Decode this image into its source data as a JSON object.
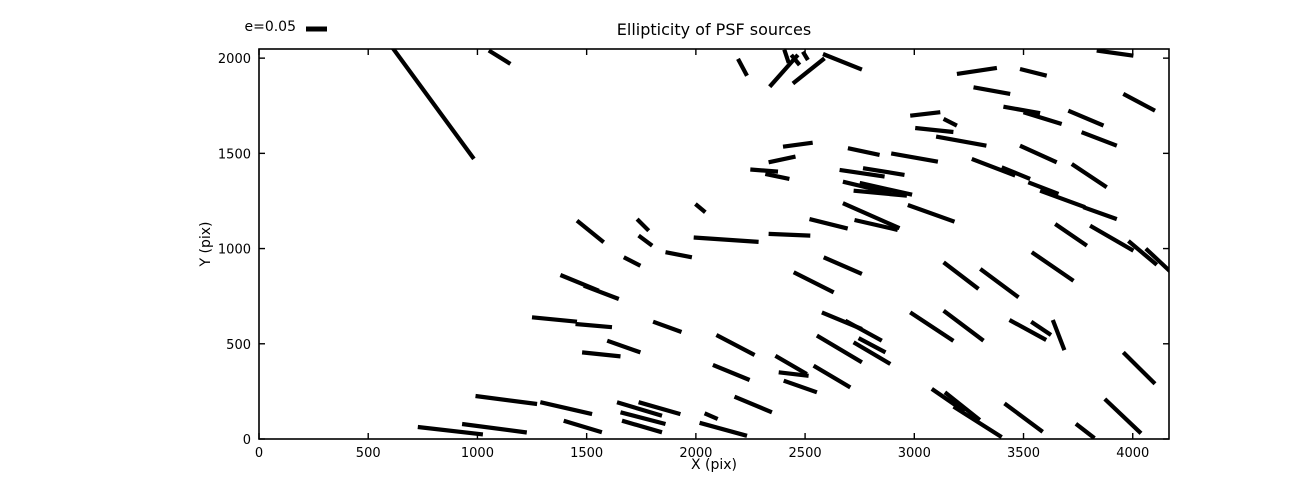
{
  "chart_data": {
    "type": "scatter",
    "subtype": "whisker-segments",
    "title": "Ellipticity of PSF sources",
    "xlabel": "X (pix)",
    "ylabel": "Y (pix)",
    "xlim": [
      0,
      4166
    ],
    "ylim": [
      0,
      2048
    ],
    "xticks": [
      0,
      500,
      1000,
      1500,
      2000,
      2500,
      3000,
      3500,
      4000
    ],
    "yticks": [
      0,
      500,
      1000,
      1500,
      2000
    ],
    "grid": false,
    "legend": {
      "label": "e=0.05",
      "position": "upper-left-outside",
      "marker": "thick-line"
    },
    "colors": {
      "segment": "#000000",
      "frame": "#000000",
      "background": "#ffffff"
    },
    "segments_format": [
      "x1",
      "y1",
      "x2",
      "y2"
    ],
    "segments": [
      [
        610,
        2057,
        984,
        1471
      ],
      [
        1052,
        2040,
        1151,
        1970
      ],
      [
        2193,
        1996,
        2234,
        1908
      ],
      [
        2405,
        2045,
        2425,
        1975
      ],
      [
        2490,
        2034,
        2513,
        1990
      ],
      [
        2437,
        2017,
        2475,
        1964
      ],
      [
        2338,
        1850,
        2467,
        2017
      ],
      [
        2444,
        1867,
        2589,
        1999
      ],
      [
        2582,
        2022,
        2760,
        1940
      ],
      [
        3835,
        2040,
        4003,
        2013
      ],
      [
        3195,
        1917,
        3378,
        1949
      ],
      [
        3484,
        1943,
        3606,
        1908
      ],
      [
        3271,
        1847,
        3439,
        1812
      ],
      [
        3957,
        1812,
        4102,
        1724
      ],
      [
        3408,
        1745,
        3576,
        1711
      ],
      [
        3500,
        1716,
        3675,
        1654
      ],
      [
        3705,
        1724,
        3866,
        1646
      ],
      [
        3766,
        1611,
        3927,
        1540
      ],
      [
        3134,
        1681,
        3195,
        1646
      ],
      [
        3484,
        1540,
        3652,
        1453
      ],
      [
        3721,
        1444,
        3881,
        1322
      ],
      [
        3263,
        1471,
        3462,
        1383
      ],
      [
        3400,
        1427,
        3530,
        1366
      ],
      [
        3522,
        1348,
        3660,
        1287
      ],
      [
        3576,
        1304,
        3782,
        1217
      ],
      [
        3774,
        1217,
        3927,
        1155
      ],
      [
        3645,
        1129,
        3790,
        1015
      ],
      [
        3805,
        1120,
        4003,
        989
      ],
      [
        3980,
        1040,
        4110,
        915
      ],
      [
        4060,
        1000,
        4171,
        880
      ],
      [
        2981,
        1698,
        3119,
        1716
      ],
      [
        3004,
        1633,
        3179,
        1612
      ],
      [
        3100,
        1588,
        3330,
        1540
      ],
      [
        2399,
        1535,
        2535,
        1556
      ],
      [
        2333,
        1453,
        2456,
        1483
      ],
      [
        2249,
        1415,
        2376,
        1404
      ],
      [
        2318,
        1392,
        2428,
        1366
      ],
      [
        2696,
        1527,
        2841,
        1492
      ],
      [
        2894,
        1500,
        3108,
        1456
      ],
      [
        2658,
        1413,
        2864,
        1378
      ],
      [
        2765,
        1422,
        2955,
        1387
      ],
      [
        2673,
        1351,
        2894,
        1290
      ],
      [
        2750,
        1345,
        2990,
        1283
      ],
      [
        2722,
        1304,
        2966,
        1278
      ],
      [
        2673,
        1238,
        2932,
        1107
      ],
      [
        2726,
        1150,
        2924,
        1098
      ],
      [
        2970,
        1229,
        3184,
        1141
      ],
      [
        2520,
        1155,
        2695,
        1105
      ],
      [
        2333,
        1077,
        2524,
        1068
      ],
      [
        1456,
        1147,
        1578,
        1033
      ],
      [
        1731,
        1155,
        1784,
        1094
      ],
      [
        1738,
        1068,
        1800,
        1015
      ],
      [
        1998,
        1234,
        2043,
        1191
      ],
      [
        1990,
        1058,
        2287,
        1035
      ],
      [
        1670,
        954,
        1746,
        910
      ],
      [
        1861,
        981,
        1982,
        954
      ],
      [
        1380,
        861,
        1555,
        779
      ],
      [
        1487,
        805,
        1647,
        735
      ],
      [
        2585,
        954,
        2760,
        867
      ],
      [
        2448,
        876,
        2631,
        770
      ],
      [
        3134,
        928,
        3294,
        788
      ],
      [
        3302,
        893,
        3477,
        744
      ],
      [
        3538,
        981,
        3729,
        831
      ],
      [
        2577,
        665,
        2760,
        577
      ],
      [
        2684,
        621,
        2851,
        516
      ],
      [
        2554,
        543,
        2760,
        403
      ],
      [
        2722,
        508,
        2890,
        394
      ],
      [
        2745,
        530,
        2868,
        455
      ],
      [
        2364,
        437,
        2508,
        341
      ],
      [
        2379,
        350,
        2516,
        332
      ],
      [
        2539,
        385,
        2707,
        271
      ],
      [
        2402,
        306,
        2554,
        245
      ],
      [
        2094,
        546,
        2269,
        441
      ],
      [
        2078,
        389,
        2246,
        310
      ],
      [
        2177,
        222,
        2348,
        140
      ],
      [
        2017,
        85,
        2234,
        17
      ],
      [
        2981,
        665,
        3179,
        515
      ],
      [
        3080,
        263,
        3230,
        145
      ],
      [
        3140,
        245,
        3300,
        100
      ],
      [
        3180,
        170,
        3400,
        10
      ],
      [
        2040,
        135,
        2100,
        105
      ],
      [
        1250,
        639,
        1456,
        616
      ],
      [
        1449,
        604,
        1616,
        587
      ],
      [
        1804,
        616,
        1934,
        562
      ],
      [
        1594,
        516,
        1746,
        455
      ],
      [
        1479,
        455,
        1655,
        434
      ],
      [
        991,
        226,
        1273,
        184
      ],
      [
        1288,
        193,
        1525,
        131
      ],
      [
        1395,
        96,
        1570,
        35
      ],
      [
        1639,
        193,
        1845,
        122
      ],
      [
        1655,
        140,
        1861,
        79
      ],
      [
        1738,
        193,
        1929,
        131
      ],
      [
        1662,
        96,
        1845,
        35
      ],
      [
        727,
        63,
        1025,
        24
      ],
      [
        930,
        79,
        1226,
        34
      ],
      [
        3436,
        625,
        3604,
        520
      ],
      [
        3535,
        616,
        3626,
        546
      ],
      [
        3634,
        625,
        3687,
        467
      ],
      [
        3957,
        455,
        4102,
        290
      ],
      [
        3872,
        210,
        4038,
        30
      ],
      [
        3413,
        187,
        3588,
        38
      ],
      [
        3740,
        80,
        3825,
        4
      ],
      [
        3134,
        674,
        3317,
        516
      ]
    ]
  }
}
